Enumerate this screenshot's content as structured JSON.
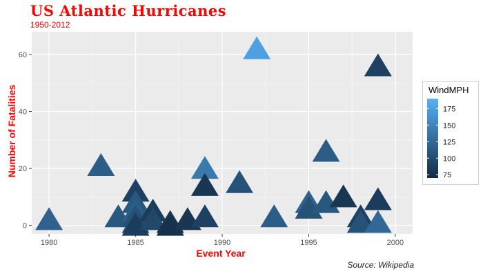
{
  "header": {
    "title": "US Atlantic Hurricanes",
    "subtitle": "1950-2012",
    "caption": "Source: Wikipedia"
  },
  "colors": {
    "title": "#ff0000",
    "panel": "#ebebeb",
    "low": "#132b43",
    "high": "#56b1f7"
  },
  "chart_data": {
    "type": "scatter",
    "marker": "triangle",
    "title": "US Atlantic Hurricanes",
    "subtitle": "1950-2012",
    "xlabel": "Event Year",
    "ylabel": "Number of Fatalities",
    "xlim": [
      1979,
      2001
    ],
    "ylim": [
      -3,
      68
    ],
    "xticks": [
      1980,
      1985,
      1990,
      1995,
      2000
    ],
    "yticks": [
      0,
      20,
      40,
      60
    ],
    "grid": true,
    "legend": {
      "title": "WindMPH",
      "position": "right",
      "type": "colorbar",
      "range": [
        70,
        190
      ],
      "ticks": [
        75,
        100,
        125,
        150,
        175
      ]
    },
    "points": [
      {
        "x": 1980,
        "y": 2,
        "wind": 120
      },
      {
        "x": 1983,
        "y": 21,
        "wind": 115
      },
      {
        "x": 1984,
        "y": 3,
        "wind": 110
      },
      {
        "x": 1985,
        "y": 12,
        "wind": 90
      },
      {
        "x": 1985,
        "y": 8,
        "wind": 110
      },
      {
        "x": 1985,
        "y": 5,
        "wind": 115
      },
      {
        "x": 1985,
        "y": 3,
        "wind": 105
      },
      {
        "x": 1985,
        "y": 1,
        "wind": 100
      },
      {
        "x": 1985,
        "y": 0,
        "wind": 85
      },
      {
        "x": 1986,
        "y": 5,
        "wind": 85
      },
      {
        "x": 1986,
        "y": 2,
        "wind": 95
      },
      {
        "x": 1987,
        "y": 1,
        "wind": 80
      },
      {
        "x": 1987,
        "y": 0,
        "wind": 75
      },
      {
        "x": 1988,
        "y": 2,
        "wind": 80
      },
      {
        "x": 1989,
        "y": 20,
        "wind": 140
      },
      {
        "x": 1989,
        "y": 14,
        "wind": 80
      },
      {
        "x": 1989,
        "y": 3,
        "wind": 90
      },
      {
        "x": 1991,
        "y": 15,
        "wind": 105
      },
      {
        "x": 1992,
        "y": 62,
        "wind": 175
      },
      {
        "x": 1993,
        "y": 3,
        "wind": 115
      },
      {
        "x": 1995,
        "y": 8,
        "wind": 120
      },
      {
        "x": 1995,
        "y": 6,
        "wind": 105
      },
      {
        "x": 1996,
        "y": 26,
        "wind": 115
      },
      {
        "x": 1996,
        "y": 8,
        "wind": 110
      },
      {
        "x": 1997,
        "y": 10,
        "wind": 80
      },
      {
        "x": 1998,
        "y": 3,
        "wind": 90
      },
      {
        "x": 1998,
        "y": 1,
        "wind": 105
      },
      {
        "x": 1999,
        "y": 56,
        "wind": 90
      },
      {
        "x": 1999,
        "y": 9,
        "wind": 85
      },
      {
        "x": 1999,
        "y": 1,
        "wind": 125
      }
    ]
  }
}
